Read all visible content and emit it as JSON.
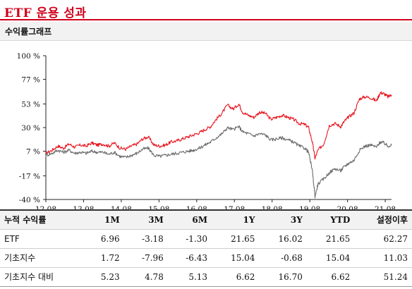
{
  "page": {
    "title": "ETF 운용 성과"
  },
  "chart_section": {
    "subtitle": "수익률그래프"
  },
  "colors": {
    "accent": "#d0021b",
    "etf_line": "#e8141e",
    "base_line": "#6b6b6b",
    "header_bg": "#f2f2f2"
  },
  "chart_data": {
    "type": "line",
    "title": "",
    "xlabel": "",
    "ylabel": "",
    "ylim": [
      -40,
      100
    ],
    "yticks": [
      100,
      77,
      53,
      30,
      7,
      -17,
      -40
    ],
    "ytick_labels": [
      "100 %",
      "77 %",
      "53 %",
      "30 %",
      "7 %",
      "-17 %",
      "-40 %"
    ],
    "xlim": [
      2012.583,
      2021.75
    ],
    "xticks": [
      2012.583,
      2013.583,
      2014.583,
      2015.583,
      2016.583,
      2017.583,
      2018.583,
      2019.583,
      2020.583,
      2021.583
    ],
    "xtick_labels": [
      "12.08",
      "13.08",
      "14.08",
      "15.08",
      "16.08",
      "17.08",
      "18.08",
      "19.08",
      "20.08",
      "21.08"
    ],
    "grid": false,
    "legend": "none",
    "series": [
      {
        "color": "#e8141e",
        "x": [
          2012.583,
          2012.75,
          2012.9,
          2013.05,
          2013.2,
          2013.35,
          2013.5,
          2013.65,
          2013.8,
          2013.95,
          2014.1,
          2014.25,
          2014.4,
          2014.55,
          2014.7,
          2014.85,
          2015.0,
          2015.15,
          2015.3,
          2015.45,
          2015.6,
          2015.75,
          2015.9,
          2016.05,
          2016.2,
          2016.35,
          2016.5,
          2016.65,
          2016.8,
          2016.95,
          2017.1,
          2017.25,
          2017.4,
          2017.55,
          2017.7,
          2017.8,
          2017.95,
          2018.1,
          2018.25,
          2018.4,
          2018.55,
          2018.7,
          2018.85,
          2019.0,
          2019.15,
          2019.3,
          2019.45,
          2019.55,
          2019.65,
          2019.72,
          2019.8,
          2019.95,
          2020.1,
          2020.25,
          2020.4,
          2020.5,
          2020.6,
          2020.75,
          2020.9,
          2021.05,
          2021.2,
          2021.35,
          2021.45,
          2021.55,
          2021.65,
          2021.75
        ],
        "y": [
          5,
          8,
          12,
          10,
          14,
          11,
          13,
          12,
          15,
          13,
          14,
          12,
          15,
          10,
          9,
          12,
          14,
          19,
          21,
          13,
          12,
          13,
          16,
          17,
          19,
          21,
          23,
          25,
          28,
          31,
          38,
          44,
          52,
          48,
          53,
          45,
          42,
          40,
          45,
          44,
          38,
          40,
          42,
          40,
          38,
          34,
          33,
          30,
          16,
          0,
          8,
          14,
          32,
          34,
          31,
          36,
          40,
          44,
          58,
          60,
          59,
          56,
          64,
          63,
          60,
          62
        ]
      },
      {
        "color": "#6b6b6b",
        "x": [
          2012.583,
          2012.75,
          2012.9,
          2013.05,
          2013.2,
          2013.35,
          2013.5,
          2013.65,
          2013.8,
          2013.95,
          2014.1,
          2014.25,
          2014.4,
          2014.55,
          2014.7,
          2014.85,
          2015.0,
          2015.15,
          2015.3,
          2015.45,
          2015.6,
          2015.75,
          2015.9,
          2016.05,
          2016.2,
          2016.35,
          2016.5,
          2016.65,
          2016.8,
          2016.95,
          2017.1,
          2017.25,
          2017.4,
          2017.55,
          2017.7,
          2017.8,
          2017.95,
          2018.1,
          2018.25,
          2018.4,
          2018.55,
          2018.7,
          2018.85,
          2019.0,
          2019.15,
          2019.3,
          2019.45,
          2019.55,
          2019.65,
          2019.72,
          2019.8,
          2019.95,
          2020.1,
          2020.25,
          2020.4,
          2020.5,
          2020.6,
          2020.75,
          2020.9,
          2021.05,
          2021.2,
          2021.35,
          2021.45,
          2021.55,
          2021.65,
          2021.75
        ],
        "y": [
          3,
          5,
          8,
          6,
          8,
          5,
          6,
          5,
          7,
          6,
          6,
          4,
          6,
          2,
          1,
          3,
          5,
          9,
          10,
          3,
          2,
          3,
          4,
          5,
          6,
          7,
          8,
          10,
          13,
          16,
          20,
          24,
          30,
          28,
          31,
          26,
          24,
          22,
          24,
          23,
          18,
          19,
          20,
          18,
          16,
          12,
          10,
          6,
          -12,
          -37,
          -25,
          -20,
          -14,
          -10,
          -12,
          -8,
          -5,
          -2,
          8,
          12,
          13,
          11,
          16,
          15,
          12,
          13
        ]
      }
    ]
  },
  "table": {
    "headers": [
      "누적 수익률",
      "1M",
      "3M",
      "6M",
      "1Y",
      "3Y",
      "YTD",
      "설정이후"
    ],
    "rows": [
      [
        "ETF",
        "6.96",
        "-3.18",
        "-1.30",
        "21.65",
        "16.02",
        "21.65",
        "62.27"
      ],
      [
        "기초지수",
        "1.72",
        "-7.96",
        "-6.43",
        "15.04",
        "-0.68",
        "15.04",
        "11.03"
      ],
      [
        "기초지수 대비",
        "5.23",
        "4.78",
        "5.13",
        "6.62",
        "16.70",
        "6.62",
        "51.24"
      ]
    ]
  }
}
